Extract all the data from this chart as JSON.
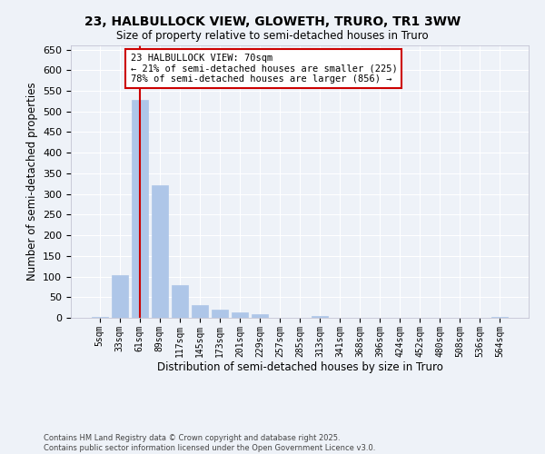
{
  "title1": "23, HALBULLOCK VIEW, GLOWETH, TRURO, TR1 3WW",
  "title2": "Size of property relative to semi-detached houses in Truro",
  "xlabel": "Distribution of semi-detached houses by size in Truro",
  "ylabel": "Number of semi-detached properties",
  "categories": [
    "5sqm",
    "33sqm",
    "61sqm",
    "89sqm",
    "117sqm",
    "145sqm",
    "173sqm",
    "201sqm",
    "229sqm",
    "257sqm",
    "285sqm",
    "313sqm",
    "341sqm",
    "368sqm",
    "396sqm",
    "424sqm",
    "452sqm",
    "480sqm",
    "508sqm",
    "536sqm",
    "564sqm"
  ],
  "values": [
    3,
    104,
    527,
    322,
    79,
    31,
    20,
    14,
    8,
    0,
    0,
    5,
    0,
    0,
    0,
    0,
    0,
    0,
    0,
    0,
    3
  ],
  "bar_color": "#aec6e8",
  "bar_edgecolor": "#aec6e8",
  "vline_x": 2,
  "vline_color": "#cc0000",
  "annotation_title": "23 HALBULLOCK VIEW: 70sqm",
  "annotation_line1": "← 21% of semi-detached houses are smaller (225)",
  "annotation_line2": "78% of semi-detached houses are larger (856) →",
  "box_edgecolor": "#cc0000",
  "footer1": "Contains HM Land Registry data © Crown copyright and database right 2025.",
  "footer2": "Contains public sector information licensed under the Open Government Licence v3.0.",
  "ylim": [
    0,
    660
  ],
  "yticks": [
    0,
    50,
    100,
    150,
    200,
    250,
    300,
    350,
    400,
    450,
    500,
    550,
    600,
    650
  ],
  "background_color": "#eef2f8",
  "plot_bg_color": "#eef2f8"
}
